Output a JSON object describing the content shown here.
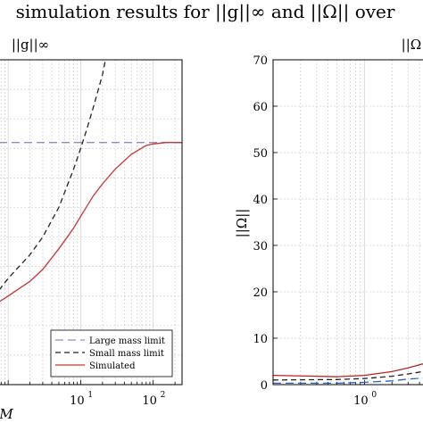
{
  "figure_title": "simulation results for ||g||∞ and ||Ω|| over",
  "colors": {
    "large": "#8a8fc8",
    "small": "#222222",
    "sim": "#cc3333",
    "sim2": "#bb2222",
    "blue": "#2f5fcf",
    "grid": "#cfcfcf"
  },
  "chart_data": [
    {
      "type": "line",
      "title": "||g||∞",
      "xlabel": "M",
      "ylabel": "",
      "x_scale": "log",
      "xlim": [
        0.75,
        250
      ],
      "ylim": [
        0,
        1.1
      ],
      "x_ticks": [
        {
          "base": "10",
          "exp": "1",
          "value": 10
        },
        {
          "base": "10",
          "exp": "2",
          "value": 100
        }
      ],
      "y_ticks": [],
      "grid": true,
      "legend_position": "bottom-right",
      "series": [
        {
          "name": "Large mass limit",
          "style": "dashed",
          "color_key": "large",
          "x": [
            0.75,
            250
          ],
          "y": [
            0.82,
            0.82
          ]
        },
        {
          "name": "Small mass limit",
          "style": "dashed",
          "color_key": "small",
          "x": [
            0.75,
            1,
            2,
            3,
            5,
            8,
            10,
            12,
            15,
            20,
            22
          ],
          "y": [
            0.32,
            0.36,
            0.44,
            0.5,
            0.6,
            0.73,
            0.8,
            0.86,
            0.94,
            1.05,
            1.1
          ]
        },
        {
          "name": "Simulated",
          "style": "solid",
          "color_key": "sim",
          "x": [
            0.75,
            1,
            2,
            3,
            5,
            8,
            10,
            15,
            20,
            30,
            50,
            80,
            100,
            150,
            250
          ],
          "y": [
            0.28,
            0.3,
            0.35,
            0.39,
            0.46,
            0.53,
            0.57,
            0.64,
            0.68,
            0.73,
            0.78,
            0.81,
            0.815,
            0.82,
            0.82
          ]
        }
      ]
    },
    {
      "type": "line",
      "title": "||Ω||",
      "xlabel": "",
      "ylabel": "||Ω||",
      "x_scale": "log",
      "xlim": [
        0.1,
        5
      ],
      "ylim": [
        0,
        70
      ],
      "x_ticks": [
        {
          "base": "10",
          "exp": "0",
          "value": 1
        }
      ],
      "y_ticks": [
        0,
        10,
        20,
        30,
        40,
        50,
        60,
        70
      ],
      "grid": true,
      "series": [
        {
          "name": "Large mass limit",
          "style": "dashed",
          "color_key": "blue",
          "x": [
            0.1,
            0.5,
            1,
            2,
            3,
            5
          ],
          "y": [
            0.3,
            0.3,
            0.5,
            0.8,
            1.2,
            1.5
          ]
        },
        {
          "name": "Small mass limit",
          "style": "dashed",
          "color_key": "small",
          "x": [
            0.1,
            0.5,
            1,
            2,
            3,
            5
          ],
          "y": [
            1.0,
            1.1,
            1.3,
            1.8,
            2.3,
            3.0
          ]
        },
        {
          "name": "Simulated",
          "style": "solid",
          "color_key": "sim2",
          "x": [
            0.1,
            0.3,
            0.5,
            1,
            2,
            3,
            5
          ],
          "y": [
            2.0,
            1.8,
            1.7,
            2.0,
            2.8,
            3.6,
            4.8
          ]
        }
      ]
    }
  ]
}
